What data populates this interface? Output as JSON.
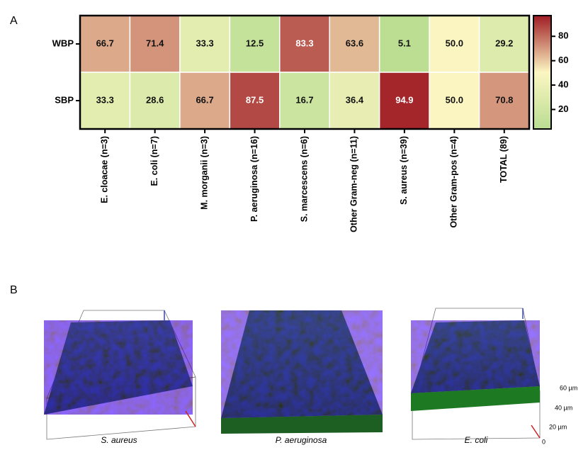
{
  "panel_labels": [
    "A",
    "B"
  ],
  "chart_data": {
    "type": "heatmap",
    "rows": [
      "WBP",
      "SBP"
    ],
    "categories": [
      "E. cloacae (n=3)",
      "E. coli (n=7)",
      "M. morganii (n=3)",
      "P. aeruginosa (n=16)",
      "S. marcescens (n=6)",
      "Other Gram-neg (n=11)",
      "S. aureus (n=39)",
      "Other Gram-pos (n=4)",
      "TOTAL (89)"
    ],
    "values": [
      [
        66.7,
        71.4,
        33.3,
        12.5,
        83.3,
        63.6,
        5.1,
        50.0,
        29.2
      ],
      [
        33.3,
        28.6,
        66.7,
        87.5,
        16.7,
        36.4,
        94.9,
        50.0,
        70.8
      ]
    ],
    "value_labels": [
      [
        "66.7",
        "71.4",
        "33.3",
        "12.5",
        "83.3",
        "63.6",
        "5.1",
        "50.0",
        "29.2"
      ],
      [
        "33.3",
        "28.6",
        "66.7",
        "87.5",
        "16.7",
        "36.4",
        "94.9",
        "50.0",
        "70.8"
      ]
    ],
    "colormap": [
      "#b9dd92",
      "#fcf6c2",
      "#a01c24"
    ],
    "clim": [
      4,
      97
    ],
    "colorbar_ticks": [
      20,
      40,
      60,
      80
    ]
  },
  "images": [
    {
      "caption": "S. aureus"
    },
    {
      "caption": "P. aeruginosa"
    },
    {
      "caption": "E. coli"
    }
  ],
  "scale_labels": [
    "60 µm",
    "40 µm",
    "20 µm",
    "0"
  ]
}
